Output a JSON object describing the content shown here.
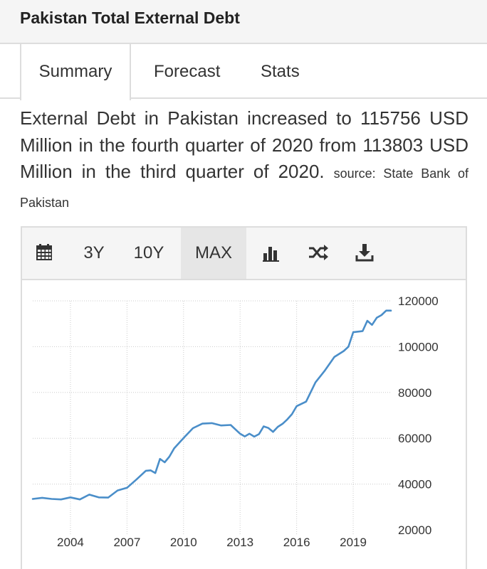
{
  "header": {
    "title": "Pakistan Total External Debt"
  },
  "tabs": [
    {
      "label": "Summary"
    },
    {
      "label": "Forecast"
    },
    {
      "label": "Stats"
    }
  ],
  "description": {
    "text": "External Debt in Pakistan increased to 115756 USD Million in the fourth quarter of 2020 from 113803 USD Million in the third quarter of 2020.",
    "source": "source: State Bank of Pakistan"
  },
  "toolbar": {
    "range_3y": "3Y",
    "range_10y": "10Y",
    "range_max": "MAX",
    "selected": "MAX",
    "icons": [
      "calendar-icon",
      "bar-chart-icon",
      "shuffle-icon",
      "download-icon"
    ]
  },
  "colors": {
    "line": "#4a8ec9",
    "grid": "#cccccc"
  },
  "chart_data": {
    "type": "line",
    "title": "",
    "xlabel": "",
    "ylabel": "",
    "xlim": [
      2002.0,
      2021.0
    ],
    "ylim": [
      20000,
      120000
    ],
    "x_ticks": [
      "2004",
      "2007",
      "2010",
      "2013",
      "2016",
      "2019"
    ],
    "y_ticks": [
      "20000",
      "40000",
      "60000",
      "80000",
      "100000",
      "120000"
    ],
    "y_axis_position": "right",
    "grid": true,
    "series": [
      {
        "name": "",
        "x": [
          2002.0,
          2002.5,
          2003.0,
          2003.5,
          2004.0,
          2004.5,
          2005.0,
          2005.5,
          2006.0,
          2006.5,
          2007.0,
          2007.5,
          2008.0,
          2008.25,
          2008.5,
          2008.75,
          2009.0,
          2009.25,
          2009.5,
          2010.0,
          2010.5,
          2011.0,
          2011.5,
          2012.0,
          2012.5,
          2013.0,
          2013.25,
          2013.5,
          2013.75,
          2014.0,
          2014.25,
          2014.5,
          2014.75,
          2015.0,
          2015.25,
          2015.5,
          2015.75,
          2016.0,
          2016.5,
          2017.0,
          2017.5,
          2018.0,
          2018.5,
          2018.75,
          2019.0,
          2019.5,
          2019.75,
          2020.0,
          2020.25,
          2020.5,
          2020.75,
          2021.0
        ],
        "y": [
          33500,
          34000,
          33500,
          33300,
          34200,
          33300,
          35400,
          34200,
          34100,
          37200,
          38400,
          42000,
          45800,
          46000,
          44800,
          51000,
          49500,
          52000,
          55600,
          60100,
          64400,
          66400,
          66600,
          65600,
          65800,
          62000,
          60800,
          62000,
          60700,
          61800,
          65200,
          64500,
          62800,
          65000,
          66300,
          68200,
          70500,
          74000,
          76000,
          84400,
          89600,
          95500,
          98100,
          100000,
          106300,
          106800,
          111300,
          109500,
          112600,
          113803,
          115756,
          115756
        ]
      }
    ]
  }
}
